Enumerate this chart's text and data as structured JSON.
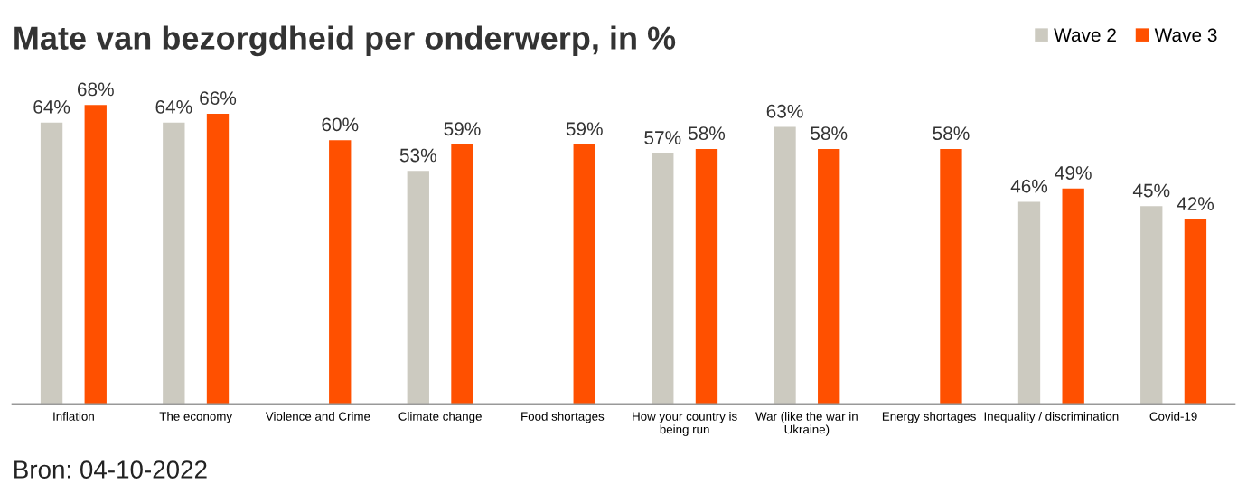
{
  "chart_data": {
    "type": "bar",
    "title": "Mate van bezorgdheid per onderwerp, in %",
    "categories": [
      "Inflation",
      "The economy",
      "Violence and Crime",
      "Climate change",
      "Food shortages",
      "How your country is\nbeing run",
      "War (like the war in\nUkraine)",
      "Energy shortages",
      "Inequality / discrimination",
      "Covid-19"
    ],
    "series": [
      {
        "name": "Wave 2",
        "color": "#cccac0",
        "values": [
          64,
          64,
          null,
          53,
          null,
          57,
          63,
          null,
          46,
          45
        ],
        "value_labels": [
          "64%",
          "64%",
          null,
          "53%",
          null,
          "57%",
          "63%",
          null,
          "46%",
          "45%"
        ]
      },
      {
        "name": "Wave 3",
        "color": "#ff5000",
        "values": [
          68,
          66,
          60,
          59,
          59,
          58,
          58,
          58,
          49,
          42
        ],
        "value_labels": [
          "68%",
          "66%",
          "60%",
          "59%",
          "59%",
          "58%",
          "58%",
          "58%",
          "49%",
          "42%"
        ]
      }
    ],
    "grid": false,
    "legend": "top right",
    "annotations": [
      "Bron: 04-10-2022"
    ]
  }
}
